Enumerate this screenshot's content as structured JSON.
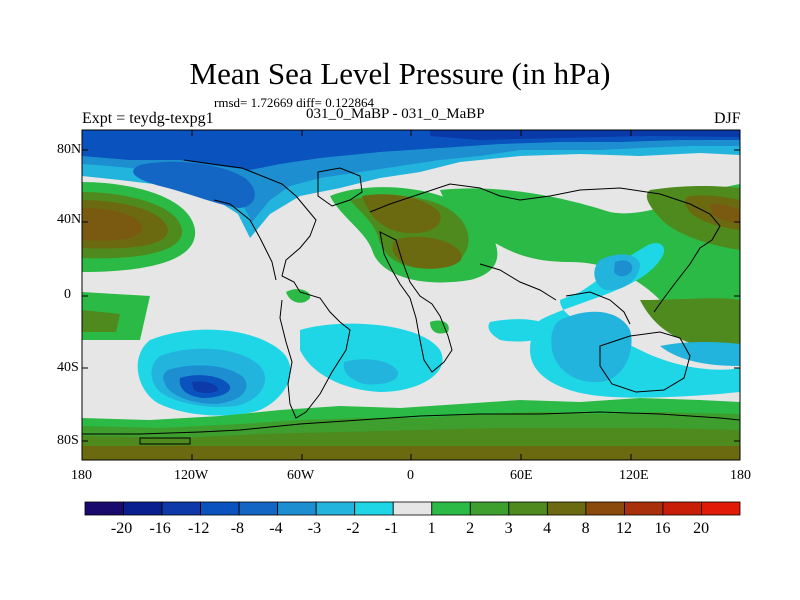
{
  "title": "Mean Sea Level Pressure (in hPa)",
  "stats": "rmsd= 1.72669 diff= 0.122864",
  "left_label": "Expt = teydg-texpg1",
  "center_label": "031_0_MaBP - 031_0_MaBP",
  "right_label": "DJF",
  "lat_labels": [
    "80N",
    "40N",
    "0",
    "40S",
    "80S"
  ],
  "lon_labels": [
    "180",
    "120W",
    "60W",
    "0",
    "60E",
    "120E",
    "180"
  ],
  "colorbar": {
    "labels": [
      "-20",
      "-16",
      "-12",
      "-8",
      "-4",
      "-3",
      "-2",
      "-1",
      "1",
      "2",
      "3",
      "4",
      "8",
      "12",
      "16",
      "20"
    ],
    "colors": [
      "#1a0a6e",
      "#0a1f8f",
      "#0d3aa8",
      "#0a52bd",
      "#1466c4",
      "#1d8fd1",
      "#22b4dc",
      "#1fd6e6",
      "#e6e6e6",
      "#2bba45",
      "#3e9e2e",
      "#4e8a1e",
      "#6b6a10",
      "#8a4a0c",
      "#a8300a",
      "#c81e08",
      "#e01a06"
    ]
  }
}
